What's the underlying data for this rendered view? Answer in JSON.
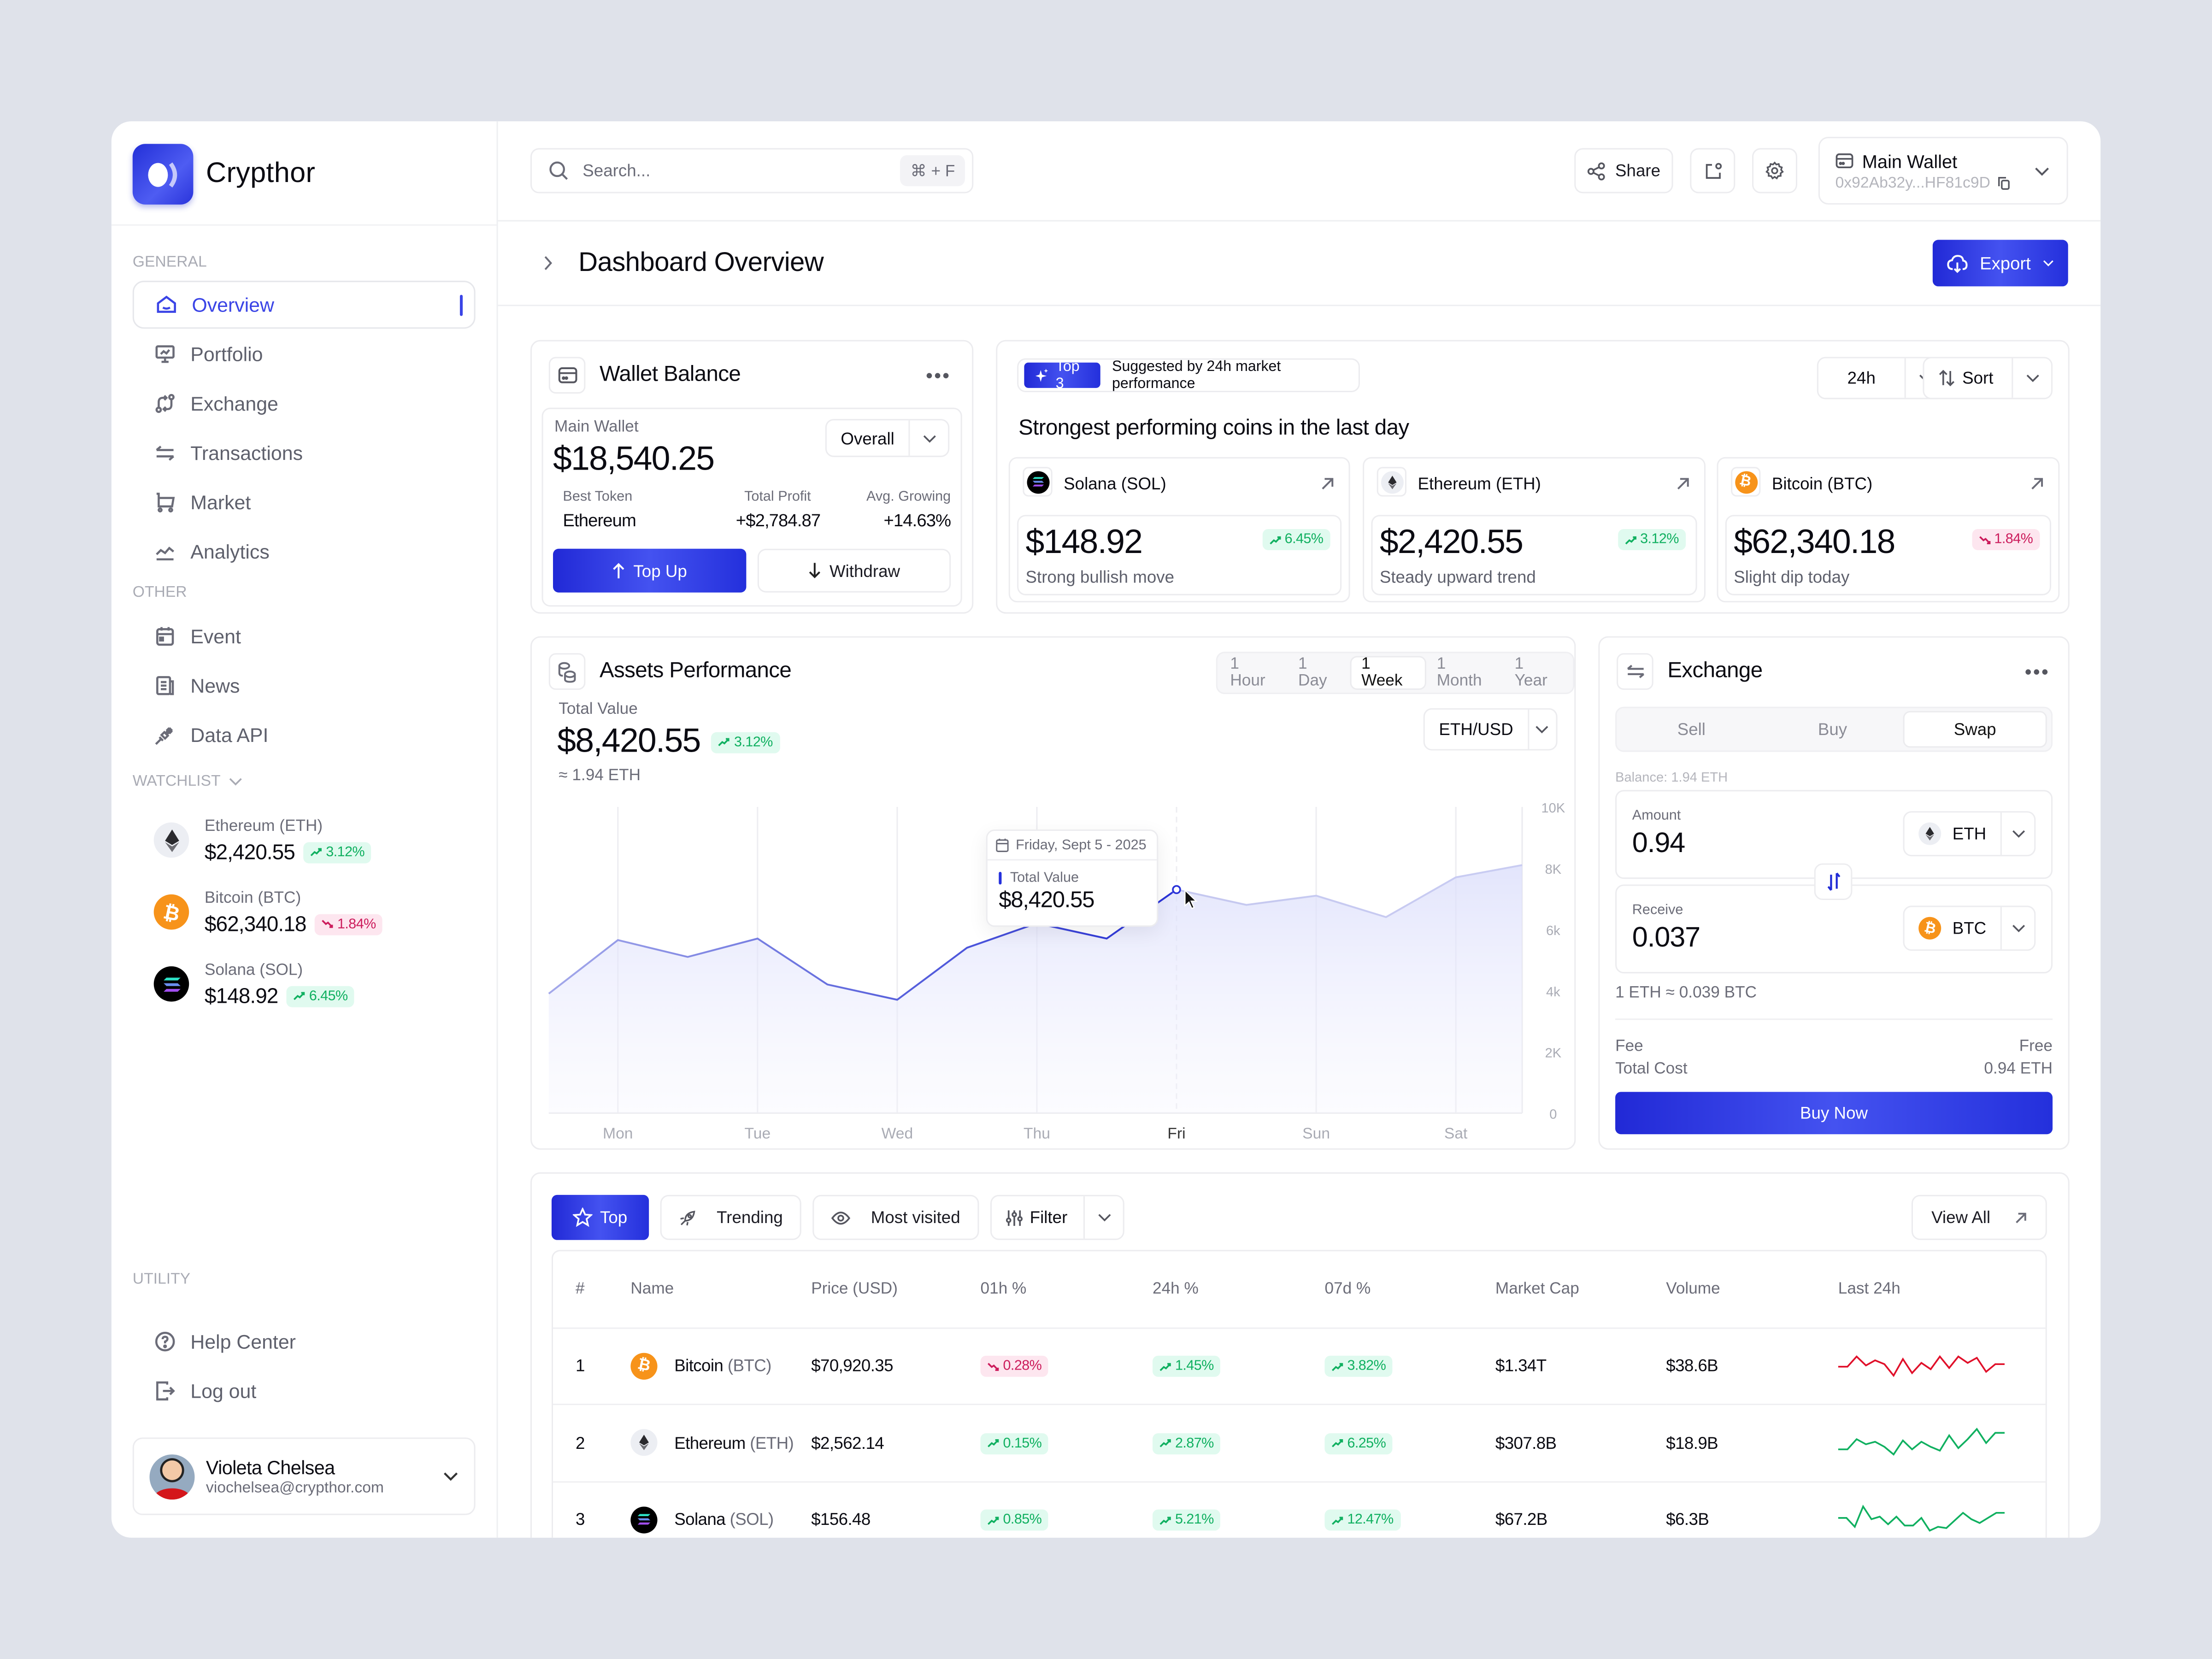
{
  "app": {
    "name": "Crypthor"
  },
  "colors": {
    "accent": "#3a44e6",
    "primary": "#2430dc",
    "up": "#10b060",
    "up_bg": "#e0faef",
    "down": "#cc1c5c",
    "down_bg": "#fde6ef",
    "btc": "#f7931a"
  },
  "sidebar": {
    "general_label": "GENERAL",
    "general": [
      {
        "label": "Overview",
        "icon": "home-icon",
        "active": true
      },
      {
        "label": "Portfolio",
        "icon": "presentation-chart-icon"
      },
      {
        "label": "Exchange",
        "icon": "exchange-arrows-icon"
      },
      {
        "label": "Transactions",
        "icon": "transfer-arrows-icon"
      },
      {
        "label": "Market",
        "icon": "cart-icon"
      },
      {
        "label": "Analytics",
        "icon": "line-chart-icon"
      }
    ],
    "other_label": "OTHER",
    "other": [
      {
        "label": "Event",
        "icon": "calendar-icon"
      },
      {
        "label": "News",
        "icon": "newspaper-icon"
      },
      {
        "label": "Data API",
        "icon": "plug-icon"
      }
    ],
    "watchlist_label": "WATCHLIST",
    "watchlist": [
      {
        "name": "Ethereum (ETH)",
        "price": "$2,420.55",
        "change": "3.12%",
        "dir": "up"
      },
      {
        "name": "Bitcoin (BTC)",
        "price": "$62,340.18",
        "change": "1.84%",
        "dir": "down"
      },
      {
        "name": "Solana (SOL)",
        "price": "$148.92",
        "change": "6.45%",
        "dir": "up"
      }
    ],
    "utility_label": "UTILITY",
    "utility": [
      {
        "label": "Help Center",
        "icon": "help-circle-icon"
      },
      {
        "label": "Log out",
        "icon": "logout-icon"
      }
    ],
    "user": {
      "name": "Violeta Chelsea",
      "email": "viochelsea@crypthor.com"
    }
  },
  "topbar": {
    "search_placeholder": "Search...",
    "search_shortcut": "⌘ + F",
    "share_label": "Share",
    "wallet_name": "Main Wallet",
    "wallet_address": "0x92Ab32y...HF81c9D"
  },
  "page": {
    "title": "Dashboard Overview",
    "export_label": "Export"
  },
  "wallet_balance": {
    "title": "Wallet Balance",
    "wallet_label": "Main Wallet",
    "balance": "$18,540.25",
    "period": "Overall",
    "stats": [
      {
        "label": "Best Token",
        "value": "Ethereum"
      },
      {
        "label": "Total Profit",
        "value": "+$2,784.87"
      },
      {
        "label": "Avg. Growing",
        "value": "+14.63%"
      }
    ],
    "top_up_label": "Top Up",
    "withdraw_label": "Withdraw"
  },
  "top_coins": {
    "badge": "Top 3",
    "badge_note": "Suggested by 24h market performance",
    "heading": "Strongest performing coins in the last day",
    "period": "24h",
    "sort_label": "Sort",
    "coins": [
      {
        "name": "Solana (SOL)",
        "price": "$148.92",
        "change": "6.45%",
        "dir": "up",
        "note": "Strong bullish move"
      },
      {
        "name": "Ethereum (ETH)",
        "price": "$2,420.55",
        "change": "3.12%",
        "dir": "up",
        "note": "Steady upward trend"
      },
      {
        "name": "Bitcoin (BTC)",
        "price": "$62,340.18",
        "change": "1.84%",
        "dir": "down",
        "note": "Slight dip today"
      }
    ]
  },
  "assets": {
    "title": "Assets Performance",
    "total_label": "Total Value",
    "total": "$8,420.55",
    "change": "3.12%",
    "eth_equiv": "≈ 1.94 ETH",
    "ranges": [
      "1 Hour",
      "1 Day",
      "1 Week",
      "1 Month",
      "1 Year"
    ],
    "active_range": "1 Week",
    "pair": "ETH/USD",
    "tooltip": {
      "date": "Friday, Sept 5 - 2025",
      "label": "Total Value",
      "value": "$8,420.55"
    }
  },
  "chart_data": {
    "type": "area",
    "title": "Assets Performance",
    "x": [
      "Mon",
      "Tue",
      "Wed",
      "Thu",
      "Fri",
      "Sun",
      "Sat"
    ],
    "y_ticks": [
      "0",
      "2K",
      "4k",
      "6k",
      "8K",
      "10K"
    ],
    "ylim": [
      0,
      10000
    ],
    "series": [
      {
        "name": "Total Value",
        "points": [
          [
            0,
            3900
          ],
          [
            0.5,
            5650
          ],
          [
            0.75,
            5100
          ],
          [
            1.0,
            5700
          ],
          [
            1.25,
            4200
          ],
          [
            1.5,
            3700
          ],
          [
            1.75,
            5400
          ],
          [
            2.0,
            6200
          ],
          [
            2.25,
            5700
          ],
          [
            2.5,
            7300
          ],
          [
            2.75,
            6800
          ],
          [
            3.0,
            7100
          ],
          [
            3.25,
            6400
          ],
          [
            3.5,
            7700
          ],
          [
            3.75,
            8100
          ]
        ]
      }
    ],
    "highlight": {
      "x": "Fri",
      "value": 8420.55
    },
    "grid": true
  },
  "exchange": {
    "title": "Exchange",
    "tabs": [
      "Sell",
      "Buy",
      "Swap"
    ],
    "active_tab": "Swap",
    "balance": "Balance: 1.94 ETH",
    "amount_label": "Amount",
    "amount": "0.94",
    "from_token": "ETH",
    "receive_label": "Receive",
    "receive": "0.037",
    "to_token": "BTC",
    "rate": "1 ETH ≈ 0.039 BTC",
    "fee_label": "Fee",
    "fee": "Free",
    "total_label": "Total Cost",
    "total": "0.94 ETH",
    "buy_label": "Buy Now"
  },
  "market": {
    "tabs": [
      {
        "label": "Top",
        "icon": "star-icon",
        "active": true
      },
      {
        "label": "Trending",
        "icon": "rocket-icon"
      },
      {
        "label": "Most visited",
        "icon": "eye-icon"
      }
    ],
    "filter_label": "Filter",
    "view_all_label": "View All",
    "columns": [
      "#",
      "Name",
      "Price (USD)",
      "01h %",
      "24h %",
      "07d %",
      "Market Cap",
      "Volume",
      "Last 24h"
    ],
    "rows": [
      {
        "rank": "1",
        "name": "Bitcoin",
        "symbol": "(BTC)",
        "price": "$70,920.35",
        "h1": "0.28%",
        "h1_dir": "down",
        "h24": "1.45%",
        "h24_dir": "up",
        "d7": "3.82%",
        "d7_dir": "up",
        "mcap": "$1.34T",
        "volume": "$38.6B",
        "spark_color": "#e0102a"
      },
      {
        "rank": "2",
        "name": "Ethereum",
        "symbol": "(ETH)",
        "price": "$2,562.14",
        "h1": "0.15%",
        "h1_dir": "up",
        "h24": "2.87%",
        "h24_dir": "up",
        "d7": "6.25%",
        "d7_dir": "up",
        "mcap": "$307.8B",
        "volume": "$18.9B",
        "spark_color": "#10b060"
      },
      {
        "rank": "3",
        "name": "Solana",
        "symbol": "(SOL)",
        "price": "$156.48",
        "h1": "0.85%",
        "h1_dir": "up",
        "h24": "5.21%",
        "h24_dir": "up",
        "d7": "12.47%",
        "d7_dir": "up",
        "mcap": "$67.2B",
        "volume": "$6.3B",
        "spark_color": "#10b060"
      }
    ]
  }
}
